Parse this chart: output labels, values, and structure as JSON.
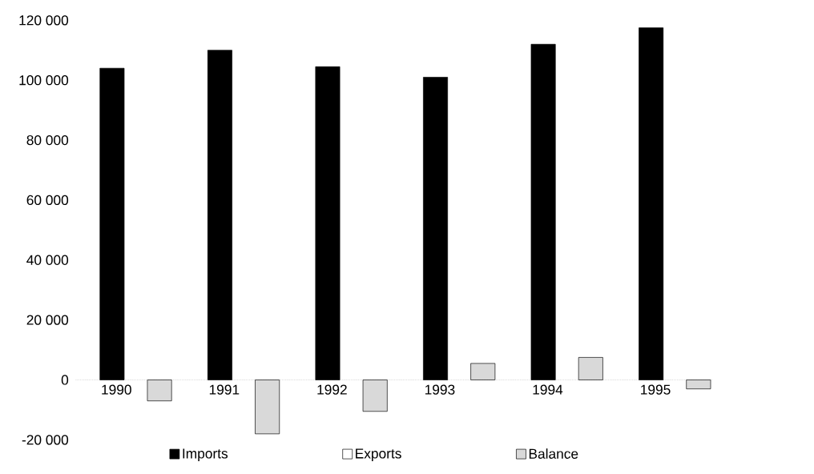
{
  "chart_data": {
    "type": "bar",
    "categories": [
      "1990",
      "1991",
      "1992",
      "1993",
      "1994",
      "1995"
    ],
    "series": [
      {
        "name": "Imports",
        "color": "#000000",
        "values": [
          104000,
          110000,
          104500,
          101000,
          112000,
          117500
        ]
      },
      {
        "name": "Exports",
        "color": "#ffffff",
        "values": [
          null,
          null,
          null,
          null,
          null,
          null
        ]
      },
      {
        "name": "Balance",
        "color": "#d9d9d9",
        "values": [
          -7000,
          -18000,
          -10500,
          5500,
          7500,
          -3000
        ]
      }
    ],
    "ylim": [
      -20000,
      120000
    ],
    "yticks": [
      {
        "value": -20000,
        "label": "-20 000"
      },
      0,
      {
        "value": 20000,
        "label": "20 000"
      },
      {
        "value": 40000,
        "label": "40 000"
      },
      {
        "value": 60000,
        "label": "60 000"
      },
      {
        "value": 80000,
        "label": "80 000"
      },
      {
        "value": 100000,
        "label": "100 000"
      },
      {
        "value": 120000,
        "label": "120 000"
      }
    ],
    "legend": "bottom"
  }
}
